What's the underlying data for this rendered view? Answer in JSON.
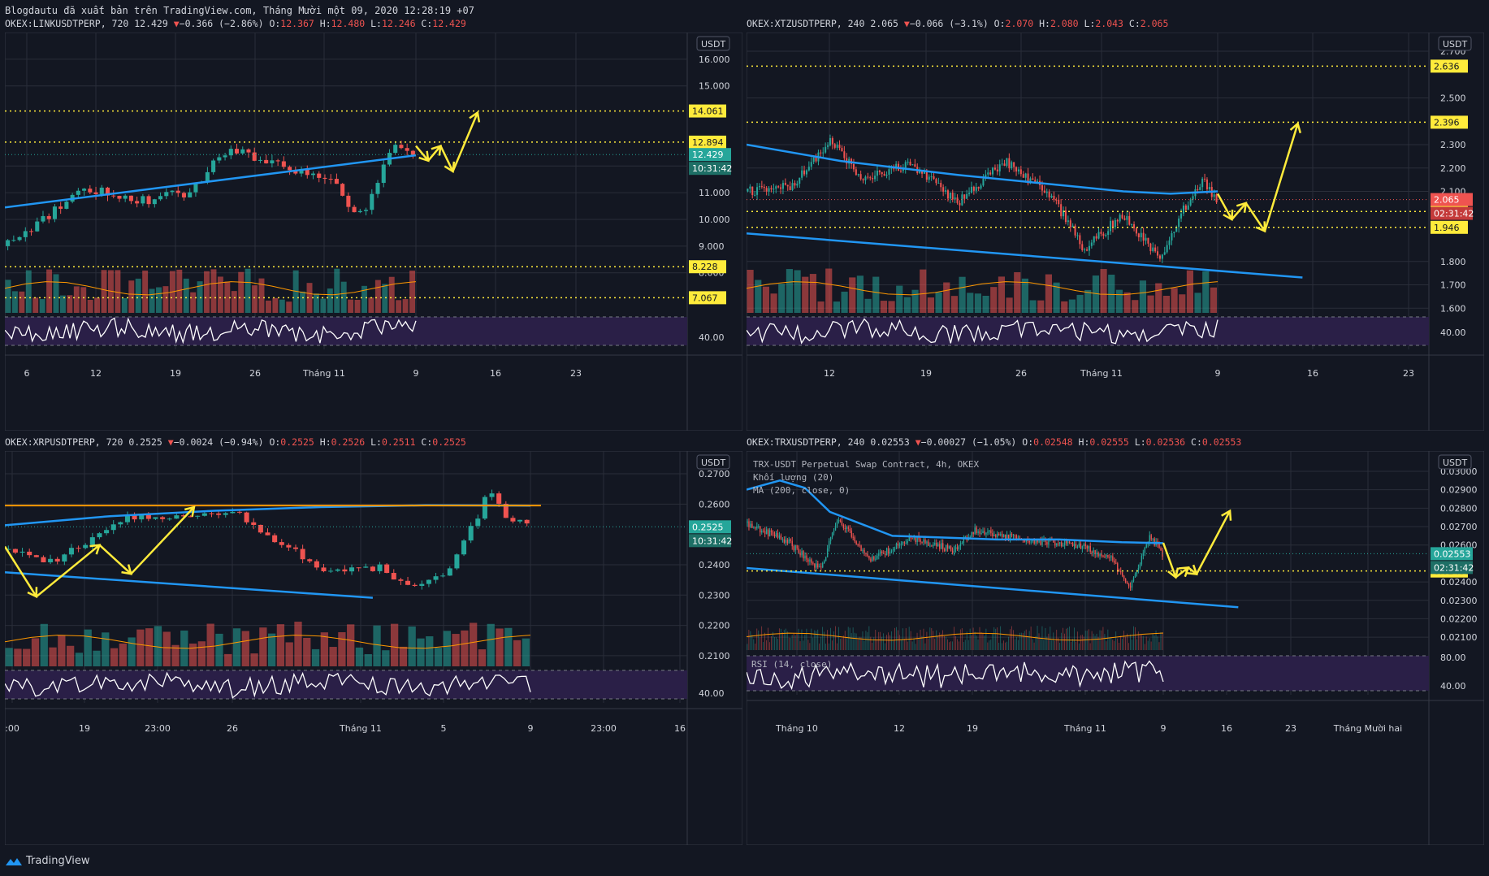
{
  "header": "Blogdautu đã xuất bản trên TradingView.com, Tháng Mười một 09, 2020 12:28:19 +07",
  "footer": {
    "brand": "TradingView",
    "logo_icon": "tradingview-logo-icon"
  },
  "currency": "USDT",
  "colors": {
    "bg": "#131722",
    "grid": "#2a2e39",
    "up": "#26a69a",
    "down": "#ef5350",
    "ma": "#2196f3",
    "level": "#ffeb3b",
    "arrow": "#ffeb3b",
    "rsi": "#ffffff",
    "rsi_band": "#2a1f47",
    "orange": "#ff9800"
  },
  "panels": [
    {
      "id": "link",
      "title_left": "OKEX:LINKUSDTPERP, 720 12.429",
      "change": "−0.366 (−2.86%)",
      "ohlc": [
        [
          "O:",
          "12.367"
        ],
        [
          "H:",
          "12.480"
        ],
        [
          "L:",
          "12.246"
        ],
        [
          "C:",
          "12.429"
        ]
      ],
      "price_ticks": [
        "16.000",
        "15.000",
        "12.000",
        "11.000",
        "10.000",
        "9.000",
        "8.000"
      ],
      "rsi_tick": "40.00",
      "levels": [
        "14.061",
        "12.894",
        "8.228",
        "7.067"
      ],
      "price_tags": [
        "12.429",
        "10:31:42"
      ],
      "time_ticks": [
        "6",
        "12",
        "19",
        "26",
        "Tháng 11",
        "9",
        "16",
        "23"
      ]
    },
    {
      "id": "xtz",
      "title_left": "OKEX:XTZUSDTPERP, 240 2.065",
      "change": "−0.066 (−3.1%)",
      "ohlc": [
        [
          "O:",
          "2.070"
        ],
        [
          "H:",
          "2.080"
        ],
        [
          "L:",
          "2.043"
        ],
        [
          "C:",
          "2.065"
        ]
      ],
      "price_ticks": [
        "2.700",
        "2.500",
        "2.300",
        "2.200",
        "2.100",
        "1.800",
        "1.700",
        "1.600"
      ],
      "rsi_tick": "40.00",
      "levels": [
        "2.636",
        "2.396",
        "2.014",
        "1.946"
      ],
      "price_tags": [
        "2.065",
        "02:31:42"
      ],
      "time_ticks": [
        "12",
        "19",
        "26",
        "Tháng 11",
        "9",
        "16",
        "23"
      ]
    },
    {
      "id": "xrp",
      "title_left": "OKEX:XRPUSDTPERP, 720 0.2525",
      "change": "−0.0024 (−0.94%)",
      "ohlc": [
        [
          "O:",
          "0.2525"
        ],
        [
          "H:",
          "0.2526"
        ],
        [
          "L:",
          "0.2511"
        ],
        [
          "C:",
          "0.2525"
        ]
      ],
      "price_ticks": [
        "0.2700",
        "0.2600",
        "0.2400",
        "0.2300",
        "0.2200",
        "0.2100"
      ],
      "rsi_tick": "40.00",
      "levels": [],
      "price_tags": [
        "0.2525",
        "10:31:42"
      ],
      "time_ticks": [
        ":00",
        "19",
        "23:00",
        "26",
        "Tháng 11",
        "5",
        "9",
        "23:00",
        "16"
      ]
    },
    {
      "id": "trx",
      "title_left": "OKEX:TRXUSDTPERP, 240 0.02553",
      "change": "−0.00027 (−1.05%)",
      "ohlc": [
        [
          "O:",
          "0.02548"
        ],
        [
          "H:",
          "0.02555"
        ],
        [
          "L:",
          "0.02536"
        ],
        [
          "C:",
          "0.02553"
        ]
      ],
      "legend": [
        "TRX-USDT Perpetual Swap Contract, 4h, OKEX",
        "Khối lượng (20)",
        "MA (200, close, 0)"
      ],
      "rsi_label": "RSI (14, close)",
      "price_ticks": [
        "0.03000",
        "0.02900",
        "0.02800",
        "0.02700",
        "0.02600",
        "0.02400",
        "0.02300",
        "0.02200",
        "0.02100",
        "80.00"
      ],
      "rsi_tick": "40.00",
      "levels": [
        "0.02459"
      ],
      "price_tags": [
        "0.02553",
        "02:31:42"
      ],
      "time_ticks": [
        "Tháng 10",
        "12",
        "19",
        "Tháng 11",
        "9",
        "16",
        "23",
        "Tháng Mười hai"
      ]
    }
  ],
  "chart_data": [
    {
      "type": "candlestick",
      "symbol": "OKEX:LINKUSDTPERP",
      "interval": "720",
      "ylim": [
        6.5,
        17.0
      ],
      "levels": [
        14.061,
        12.894,
        8.228,
        7.067
      ],
      "last": 12.429,
      "ma_line": [
        [
          0,
          10.45
        ],
        [
          100,
          12.4
        ]
      ],
      "trend_arrow": [
        [
          100,
          12.75
        ],
        [
          103,
          12.2
        ],
        [
          106,
          12.75
        ],
        [
          109,
          11.8
        ],
        [
          115,
          14.0
        ]
      ]
    },
    {
      "type": "candlestick",
      "symbol": "OKEX:XTZUSDTPERP",
      "interval": "240",
      "ylim": [
        1.58,
        2.78
      ],
      "levels": [
        2.636,
        2.396,
        2.014,
        1.946
      ],
      "last": 2.065,
      "support_line": [
        [
          0,
          1.92
        ],
        [
          100,
          1.76
        ]
      ],
      "trend_arrow": [
        [
          100,
          2.09
        ],
        [
          103,
          1.98
        ],
        [
          106,
          2.05
        ],
        [
          110,
          1.93
        ],
        [
          117,
          2.39
        ]
      ]
    },
    {
      "type": "candlestick",
      "symbol": "OKEX:XRPUSDTPERP",
      "interval": "720",
      "ylim": [
        0.2065,
        0.2775
      ],
      "last": 0.2525,
      "resistance": 0.2595,
      "support_line": [
        [
          0,
          0.2375
        ],
        [
          100,
          0.2255
        ]
      ],
      "trend_arrow": [
        [
          0,
          0.246
        ],
        [
          6,
          0.2295
        ],
        [
          18,
          0.2465
        ],
        [
          24,
          0.237
        ],
        [
          36,
          0.259
        ]
      ]
    },
    {
      "type": "candlestick",
      "symbol": "OKEX:TRXUSDTPERP",
      "interval": "240",
      "ylim": [
        0.0203,
        0.0311
      ],
      "levels": [
        0.02459
      ],
      "last": 0.02553,
      "support_line": [
        [
          0,
          0.02475
        ],
        [
          100,
          0.02295
        ]
      ],
      "trend_arrow": [
        [
          100,
          0.02612
        ],
        [
          103,
          0.02425
        ],
        [
          106,
          0.02478
        ],
        [
          108,
          0.02442
        ],
        [
          116,
          0.02785
        ]
      ]
    }
  ]
}
